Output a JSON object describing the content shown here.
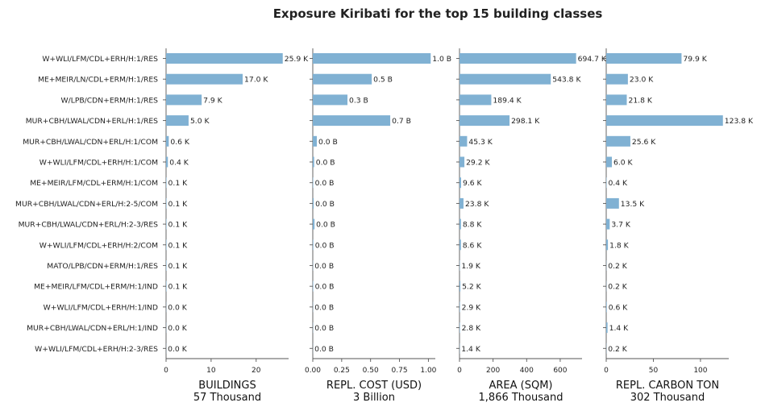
{
  "chart_data": {
    "type": "bar",
    "orientation": "horizontal",
    "title": "Exposure Kiribati for the top 15 building classes",
    "bar_color": "#80b1d3",
    "categories": [
      "W+WLI/LFM/CDL+ERH/H:1/RES",
      "ME+MEIR/LN/CDL+ERM/H:1/RES",
      "W/LPB/CDN+ERM/H:1/RES",
      "MUR+CBH/LWAL/CDN+ERL/H:1/RES",
      "MUR+CBH/LWAL/CDN+ERL/H:1/COM",
      "W+WLI/LFM/CDL+ERH/H:1/COM",
      "ME+MEIR/LFM/CDL+ERM/H:1/COM",
      "MUR+CBH/LWAL/CDN+ERL/H:2-5/COM",
      "MUR+CBH/LWAL/CDN+ERL/H:2-3/RES",
      "W+WLI/LFM/CDL+ERH/H:2/COM",
      "MATO/LPB/CDN+ERM/H:1/RES",
      "ME+MEIR/LFM/CDL+ERM/H:1/IND",
      "W+WLI/LFM/CDL+ERH/H:1/IND",
      "MUR+CBH/LWAL/CDN+ERL/H:1/IND",
      "W+WLI/LFM/CDL+ERH/H:2-3/RES"
    ],
    "panels": [
      {
        "xlabel": "BUILDINGS",
        "subtitle": "57 Thousand",
        "xlim": [
          0,
          27.2
        ],
        "ticks": [
          0,
          10,
          20
        ],
        "tick_labels": [
          "0",
          "10",
          "20"
        ],
        "values": [
          25.9,
          17.0,
          7.9,
          5.0,
          0.6,
          0.4,
          0.1,
          0.1,
          0.1,
          0.1,
          0.1,
          0.1,
          0.04,
          0.04,
          0.03
        ],
        "labels": [
          "25.9 K",
          "17.0 K",
          "7.9 K",
          "5.0 K",
          "0.6 K",
          "0.4 K",
          "0.1 K",
          "0.1 K",
          "0.1 K",
          "0.1 K",
          "0.1 K",
          "0.1 K",
          "0.0 K",
          "0.0 K",
          "0.0 K"
        ]
      },
      {
        "xlabel": "REPL. COST (USD)",
        "subtitle": "3 Billion",
        "xlim": [
          0,
          1.06
        ],
        "ticks": [
          0,
          0.25,
          0.5,
          0.75,
          1.0
        ],
        "tick_labels": [
          "0.00",
          "0.25",
          "0.50",
          "0.75",
          "1.00"
        ],
        "values": [
          1.02,
          0.51,
          0.3,
          0.67,
          0.035,
          0.012,
          0.004,
          0.008,
          0.015,
          0.005,
          0.002,
          0.004,
          0.002,
          0.002,
          0.001
        ],
        "labels": [
          "1.0 B",
          "0.5 B",
          "0.3 B",
          "0.7 B",
          "0.0 B",
          "0.0 B",
          "0.0 B",
          "0.0 B",
          "0.0 B",
          "0.0 B",
          "0.0 B",
          "0.0 B",
          "0.0 B",
          "0.0 B",
          "0.0 B"
        ]
      },
      {
        "xlabel": "AREA (SQM)",
        "subtitle": "1,866 Thousand",
        "xlim": [
          0,
          730
        ],
        "ticks": [
          0,
          200,
          400,
          600
        ],
        "tick_labels": [
          "0",
          "200",
          "400",
          "600"
        ],
        "values": [
          694.7,
          543.8,
          189.4,
          298.1,
          45.3,
          29.2,
          9.6,
          23.8,
          8.8,
          8.6,
          1.9,
          5.2,
          2.9,
          2.8,
          1.4
        ],
        "labels": [
          "694.7 K",
          "543.8 K",
          "189.4 K",
          "298.1 K",
          "45.3 K",
          "29.2 K",
          "9.6 K",
          "23.8 K",
          "8.8 K",
          "8.6 K",
          "1.9 K",
          "5.2 K",
          "2.9 K",
          "2.8 K",
          "1.4 K"
        ]
      },
      {
        "xlabel": "REPL. CARBON TON",
        "subtitle": "302 Thousand",
        "xlim": [
          0,
          130
        ],
        "ticks": [
          0,
          50,
          100
        ],
        "tick_labels": [
          "0",
          "50",
          "100"
        ],
        "values": [
          79.9,
          23.0,
          21.8,
          123.8,
          25.6,
          6.0,
          0.4,
          13.5,
          3.7,
          1.8,
          0.2,
          0.2,
          0.6,
          1.4,
          0.2
        ],
        "labels": [
          "79.9 K",
          "23.0 K",
          "21.8 K",
          "123.8 K",
          "25.6 K",
          "6.0 K",
          "0.4 K",
          "13.5 K",
          "3.7 K",
          "1.8 K",
          "0.2 K",
          "0.2 K",
          "0.6 K",
          "1.4 K",
          "0.2 K"
        ]
      }
    ]
  }
}
